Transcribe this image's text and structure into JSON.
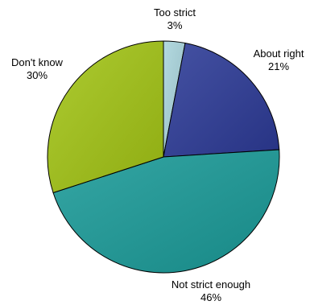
{
  "chart_data": {
    "type": "pie",
    "title": "",
    "legend": "none",
    "slices": [
      {
        "label": "Too strict",
        "value": 3,
        "value_label": "3%",
        "color": "#a9d4dc"
      },
      {
        "label": "About right",
        "value": 21,
        "value_label": "21%",
        "color": "#2c3a96"
      },
      {
        "label": "Not strict enough",
        "value": 46,
        "value_label": "46%",
        "color": "#1a9a98"
      },
      {
        "label": "Don't know",
        "value": 30,
        "value_label": "30%",
        "color": "#a2c415"
      }
    ],
    "start": "12 o'clock",
    "direction": "clockwise"
  }
}
